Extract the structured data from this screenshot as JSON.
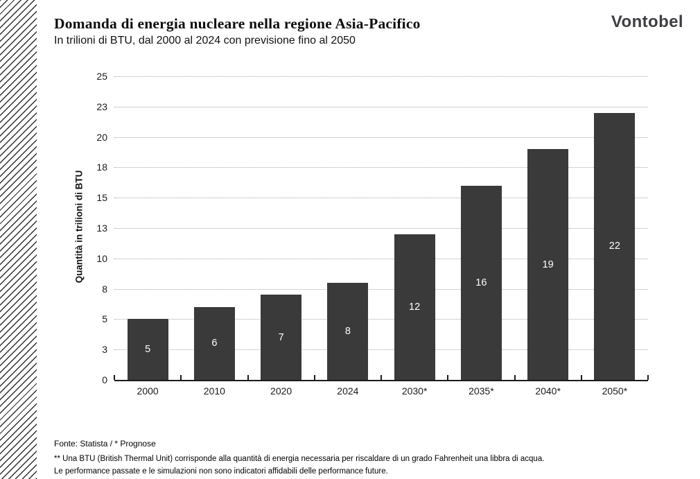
{
  "header": {
    "title": "Domanda di energia nucleare nella regione Asia-Pacifico",
    "subtitle": "In trilioni di BTU, dal 2000 al 2024 con previsione fino al 2050",
    "logo_text": "Vontobel"
  },
  "chart_data": {
    "type": "bar",
    "title": "Domanda di energia nucleare nella regione Asia-Pacifico",
    "subtitle": "In trilioni di BTU, dal 2000 al 2024 con previsione fino al 2050",
    "categories": [
      "2000",
      "2010",
      "2020",
      "2024",
      "2030*",
      "2035*",
      "2040*",
      "2050*"
    ],
    "values": [
      5,
      6,
      7,
      8,
      12,
      16,
      19,
      22
    ],
    "value_labels": [
      "5",
      "6",
      "7",
      "8",
      "12",
      "16",
      "19",
      "22"
    ],
    "xlabel": "",
    "ylabel": "Quantità in trilioni di BTU",
    "ylim": [
      0,
      25
    ],
    "y_ticks": [
      {
        "value": 0,
        "label": "0"
      },
      {
        "value": 2.5,
        "label": "3"
      },
      {
        "value": 5,
        "label": "5"
      },
      {
        "value": 7.5,
        "label": "8"
      },
      {
        "value": 10,
        "label": "10"
      },
      {
        "value": 12.5,
        "label": "13"
      },
      {
        "value": 15,
        "label": "15"
      },
      {
        "value": 17.5,
        "label": "18"
      },
      {
        "value": 20,
        "label": "20"
      },
      {
        "value": 22.5,
        "label": "23"
      },
      {
        "value": 25,
        "label": "25"
      }
    ],
    "grid": "horizontal-dotted",
    "legend_position": "none",
    "bar_color": "#3a3a3a",
    "value_label_color": "#ffffff",
    "axis_color": "#1a1a1a",
    "gridline_color": "#a8a8a8"
  },
  "footer": {
    "source_line": "Fonte: Statista / * Prognose",
    "note_line1": "** Una BTU (British Thermal Unit) corrisponde alla quantità di energia necessaria per riscaldare di un grado Fahrenheit una libbra di acqua.",
    "note_line2": "Le performance passate e le simulazioni non sono indicatori affidabili delle performance future."
  }
}
